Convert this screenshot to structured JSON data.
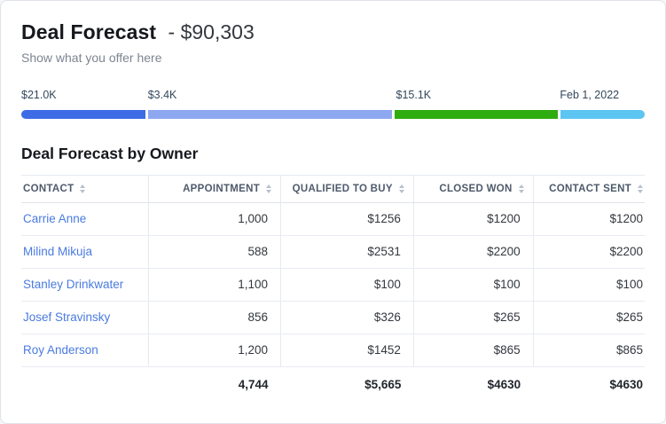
{
  "header": {
    "title": "Deal Forecast",
    "amount": "- $90,303",
    "subtitle": "Show what you offer here"
  },
  "progress": {
    "labels": [
      {
        "text": "$21.0K",
        "left_percent": 0
      },
      {
        "text": "$3.4K",
        "left_percent": 20.3
      },
      {
        "text": "$15.1K",
        "left_percent": 60.1
      },
      {
        "text": "Feb 1, 2022",
        "left_percent": 86.4
      }
    ],
    "segments": [
      {
        "name": "segment-1",
        "color": "#3d6ce6",
        "width_percent": 20.0
      },
      {
        "name": "segment-2",
        "color": "#8da8f0",
        "width_percent": 39.2
      },
      {
        "name": "segment-3",
        "color": "#2fad10",
        "width_percent": 26.3
      },
      {
        "name": "segment-4",
        "color": "#5cc5f2",
        "width_percent": 13.6
      }
    ]
  },
  "section": {
    "title": "Deal Forecast by Owner"
  },
  "table": {
    "columns": [
      {
        "label": "CONTACT"
      },
      {
        "label": "APPOINTMENT"
      },
      {
        "label": "QUALIFIED TO BUY"
      },
      {
        "label": "CLOSED WON"
      },
      {
        "label": "CONTACT SENT"
      }
    ],
    "rows": [
      {
        "contact": "Carrie Anne",
        "appointment": "1,000",
        "qualified": "$1256",
        "closed": "$1200",
        "sent": "$1200"
      },
      {
        "contact": "Milind Mikuja",
        "appointment": "588",
        "qualified": "$2531",
        "closed": "$2200",
        "sent": "$2200"
      },
      {
        "contact": "Stanley Drinkwater",
        "appointment": "1,100",
        "qualified": "$100",
        "closed": "$100",
        "sent": "$100"
      },
      {
        "contact": "Josef Stravinsky",
        "appointment": "856",
        "qualified": "$326",
        "closed": "$265",
        "sent": "$265"
      },
      {
        "contact": "Roy Anderson",
        "appointment": "1,200",
        "qualified": "$1452",
        "closed": "$865",
        "sent": "$865"
      }
    ],
    "totals": {
      "appointment": "4,744",
      "qualified": "$5,665",
      "closed": "$4630",
      "sent": "$4630"
    }
  }
}
